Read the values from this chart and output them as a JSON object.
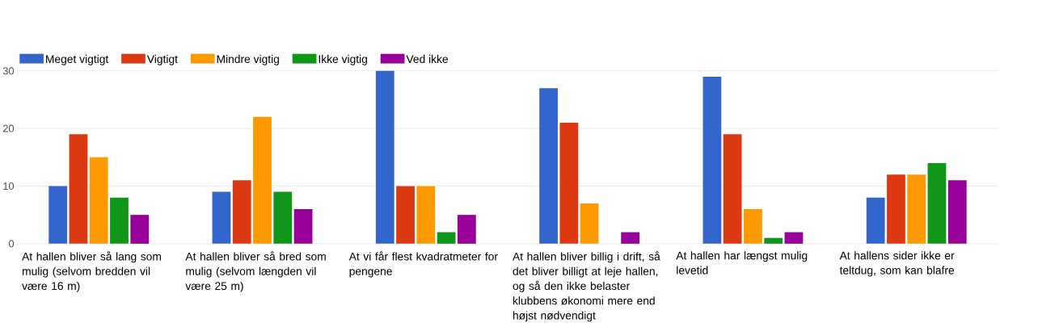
{
  "chart_data": {
    "type": "bar",
    "categories": [
      "At hallen bliver så lang som mulig (selvom bredden vil være 16 m)",
      "At hallen bliver så bred som mulig (selvom længden vil være 25 m)",
      "At vi får flest kvadratmeter for pengene",
      "At hallen bliver billig i drift, så det bliver billigt at leje hallen, og så den ikke belaster klubbens økonomi mere end højst nødvendigt",
      "At hallen har længst mulig levetid",
      "At hallens sider ikke er teltdug, som kan blafre"
    ],
    "series": [
      {
        "name": "Meget vigtigt",
        "color": "#3366cc",
        "values": [
          10,
          9,
          30,
          27,
          29,
          8
        ]
      },
      {
        "name": "Vigtigt",
        "color": "#dc3912",
        "values": [
          19,
          11,
          10,
          21,
          19,
          12
        ]
      },
      {
        "name": "Mindre vigtig",
        "color": "#ff9900",
        "values": [
          15,
          22,
          10,
          7,
          6,
          12
        ]
      },
      {
        "name": "Ikke vigtig",
        "color": "#109618",
        "values": [
          8,
          9,
          2,
          0,
          1,
          14
        ]
      },
      {
        "name": "Ved ikke",
        "color": "#990099",
        "values": [
          5,
          6,
          5,
          2,
          2,
          11
        ]
      }
    ],
    "ylim": [
      0,
      30
    ],
    "yticks": [
      0,
      10,
      20,
      30
    ],
    "grid": "y",
    "legend": "top left"
  }
}
